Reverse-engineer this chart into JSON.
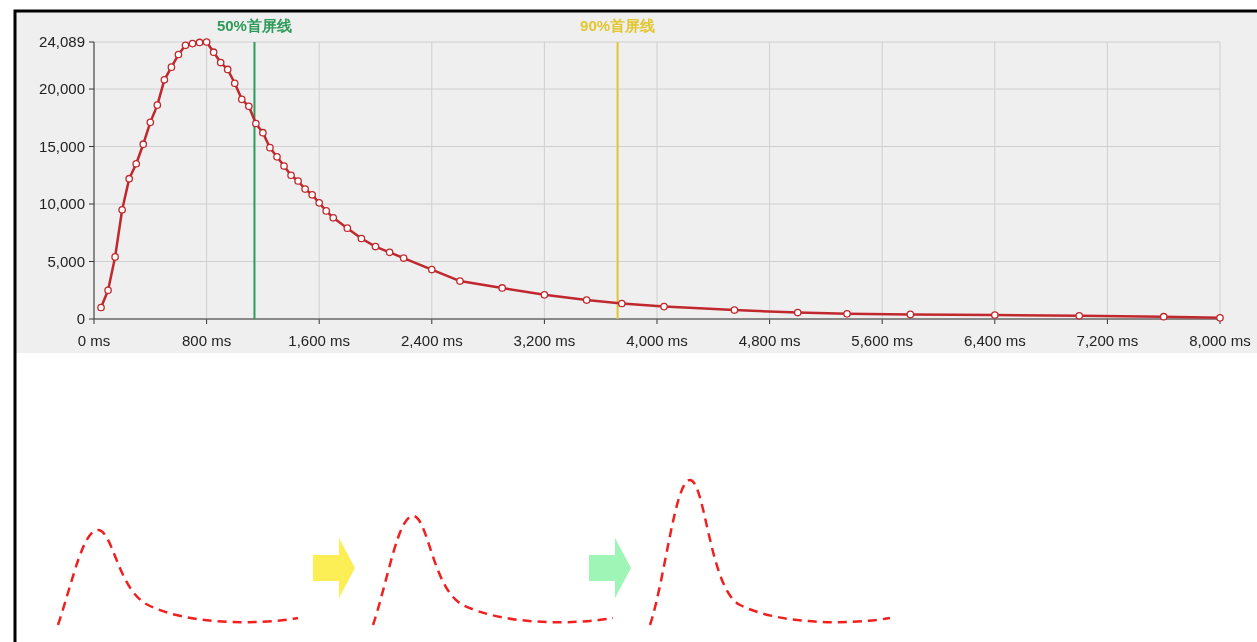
{
  "chart_data": {
    "type": "line",
    "x": [
      50,
      100,
      150,
      200,
      250,
      300,
      350,
      400,
      450,
      500,
      550,
      600,
      650,
      700,
      750,
      800,
      850,
      900,
      950,
      1000,
      1050,
      1100,
      1150,
      1200,
      1250,
      1300,
      1350,
      1400,
      1450,
      1500,
      1550,
      1600,
      1650,
      1700,
      1800,
      1900,
      2000,
      2100,
      2200,
      2400,
      2600,
      2900,
      3200,
      3500,
      3750,
      4050,
      4550,
      5000,
      5350,
      5800,
      6400,
      7000,
      7600,
      8000
    ],
    "series": [
      {
        "color": "#c0282d",
        "values": [
          1000,
          2500,
          5400,
          9500,
          12200,
          13500,
          15200,
          17100,
          18600,
          20800,
          21900,
          23000,
          23800,
          23950,
          24050,
          24089,
          23200,
          22300,
          21700,
          20500,
          19100,
          18500,
          17000,
          16200,
          14900,
          14100,
          13300,
          12500,
          12000,
          11300,
          10800,
          10100,
          9400,
          8800,
          7900,
          7000,
          6300,
          5800,
          5300,
          4300,
          3300,
          2700,
          2100,
          1650,
          1350,
          1080,
          780,
          560,
          450,
          400,
          350,
          280,
          200,
          100
        ]
      }
    ],
    "xlim": [
      0,
      8000
    ],
    "ylim": [
      0,
      24089
    ],
    "xticks": [
      {
        "value": 0,
        "label": "0 ms"
      },
      {
        "value": 800,
        "label": "800 ms"
      },
      {
        "value": 1600,
        "label": "1,600 ms"
      },
      {
        "value": 2400,
        "label": "2,400 ms"
      },
      {
        "value": 3200,
        "label": "3,200 ms"
      },
      {
        "value": 4000,
        "label": "4,000 ms"
      },
      {
        "value": 4800,
        "label": "4,800 ms"
      },
      {
        "value": 5600,
        "label": "5,600 ms"
      },
      {
        "value": 6400,
        "label": "6,400 ms"
      },
      {
        "value": 7200,
        "label": "7,200 ms"
      },
      {
        "value": 8000,
        "label": "8,000 ms"
      }
    ],
    "yticks": [
      0,
      {
        "value": 5000,
        "label": "5,000"
      },
      {
        "value": 10000,
        "label": "10,000"
      },
      {
        "value": 15000,
        "label": "15,000"
      },
      {
        "value": 20000,
        "label": "20,000"
      },
      {
        "value": 24089,
        "label": "24,089"
      }
    ],
    "ref_lines": [
      {
        "axis": "x",
        "value": 1140,
        "label": "50%首屏线",
        "color": "#2e9a5a"
      },
      {
        "axis": "x",
        "value": 3720,
        "label": "90%首屏线",
        "color": "#e2c62e"
      }
    ],
    "grid": true,
    "marker": "circle",
    "line_style": "solid"
  }
}
